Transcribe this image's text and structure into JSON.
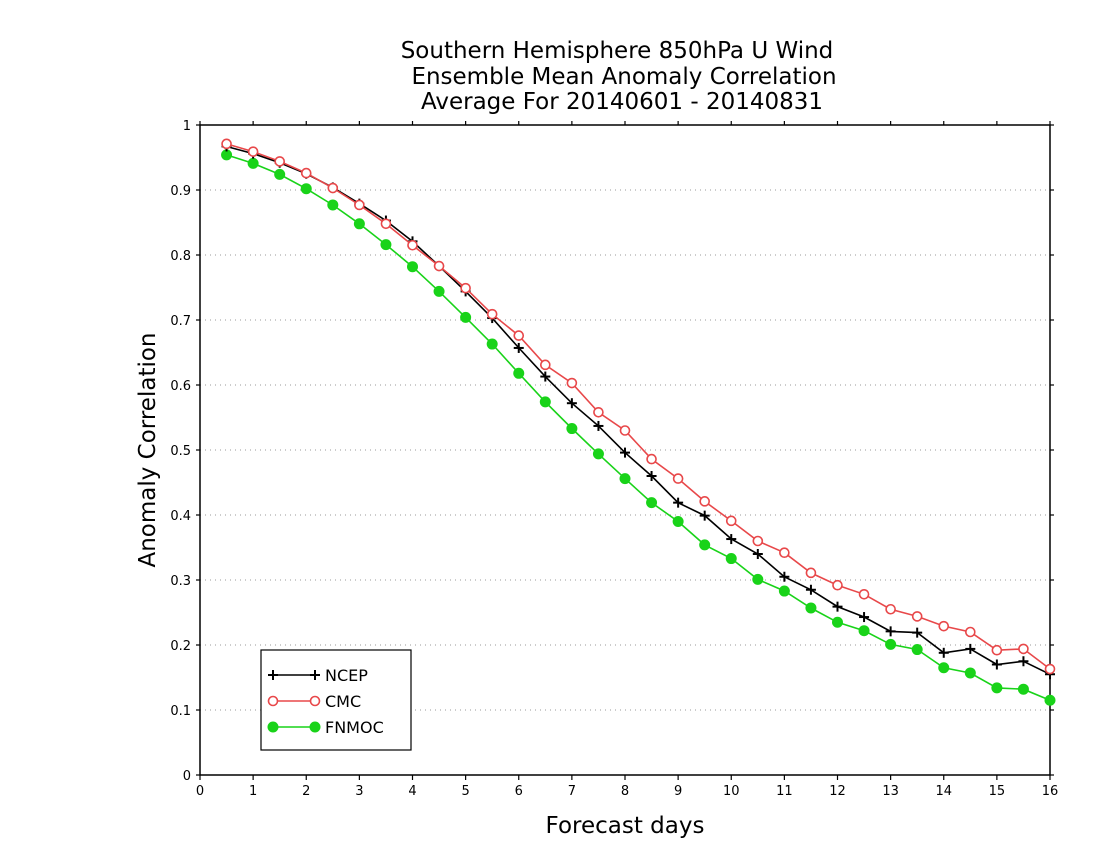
{
  "chart_data": {
    "type": "line",
    "title": [
      "Southern Hemisphere 850hPa U Wind",
      "Ensemble Mean Anomaly Correlation",
      "Average For 20140601 - 20140831"
    ],
    "xlabel": "Forecast days",
    "ylabel": "Anomaly Correlation",
    "xlim": [
      0,
      16
    ],
    "ylim": [
      0,
      1
    ],
    "x_ticks": [
      0,
      1,
      2,
      3,
      4,
      5,
      6,
      7,
      8,
      9,
      10,
      11,
      12,
      13,
      14,
      15,
      16
    ],
    "y_ticks": [
      0,
      0.1,
      0.2,
      0.3,
      0.4,
      0.5,
      0.6,
      0.7,
      0.8,
      0.9,
      1
    ],
    "y_tick_labels": [
      "0",
      "0.1",
      "0.2",
      "0.3",
      "0.4",
      "0.5",
      "0.6",
      "0.7",
      "0.8",
      "0.9",
      "1"
    ],
    "grid": "horizontal-dotted",
    "legend_position": "bottom-left",
    "x": [
      0.5,
      1,
      1.5,
      2,
      2.5,
      3,
      3.5,
      4,
      4.5,
      5,
      5.5,
      6,
      6.5,
      7,
      7.5,
      8,
      8.5,
      9,
      9.5,
      10,
      10.5,
      11,
      11.5,
      12,
      12.5,
      13,
      13.5,
      14,
      14.5,
      15,
      15.5,
      16
    ],
    "series": [
      {
        "name": "NCEP",
        "color": "#000000",
        "marker": "plus",
        "values": [
          0.967,
          0.956,
          0.942,
          0.925,
          0.904,
          0.879,
          0.853,
          0.821,
          0.783,
          0.744,
          0.703,
          0.657,
          0.613,
          0.572,
          0.537,
          0.496,
          0.46,
          0.419,
          0.399,
          0.363,
          0.34,
          0.305,
          0.285,
          0.259,
          0.243,
          0.221,
          0.219,
          0.188,
          0.194,
          0.17,
          0.175,
          0.155
        ]
      },
      {
        "name": "CMC",
        "color": "#e8484a",
        "marker": "open-circle",
        "values": [
          0.971,
          0.959,
          0.944,
          0.926,
          0.903,
          0.877,
          0.848,
          0.815,
          0.783,
          0.749,
          0.709,
          0.676,
          0.631,
          0.603,
          0.558,
          0.53,
          0.486,
          0.456,
          0.421,
          0.391,
          0.36,
          0.342,
          0.311,
          0.292,
          0.278,
          0.255,
          0.244,
          0.229,
          0.22,
          0.192,
          0.194,
          0.163
        ]
      },
      {
        "name": "FNMOC",
        "color": "#19d319",
        "marker": "filled-circle",
        "values": [
          0.954,
          0.941,
          0.924,
          0.902,
          0.877,
          0.848,
          0.816,
          0.782,
          0.744,
          0.704,
          0.663,
          0.618,
          0.574,
          0.533,
          0.494,
          0.456,
          0.419,
          0.39,
          0.354,
          0.333,
          0.301,
          0.283,
          0.257,
          0.235,
          0.222,
          0.201,
          0.193,
          0.165,
          0.157,
          0.134,
          0.132,
          0.115
        ]
      }
    ]
  }
}
